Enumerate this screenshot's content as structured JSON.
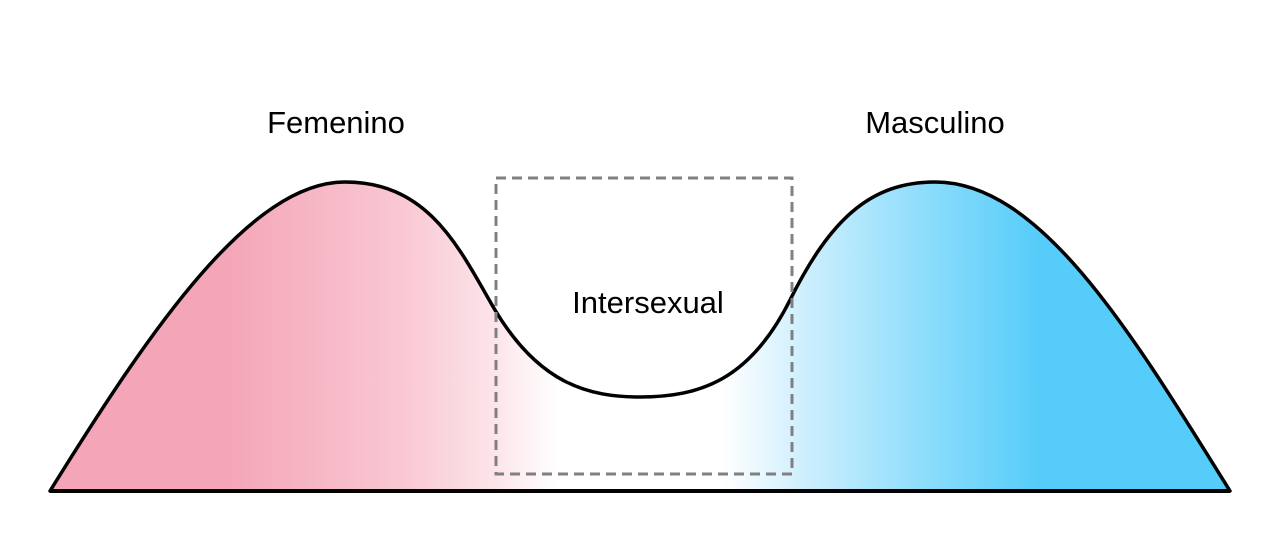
{
  "labels": {
    "left": "Femenino",
    "middle": "Intersexual",
    "right": "Masculino"
  },
  "colors": {
    "femenino": "#F4A6B8",
    "masculino": "#55CCFA",
    "outline": "#000000",
    "box": "#808080"
  }
}
